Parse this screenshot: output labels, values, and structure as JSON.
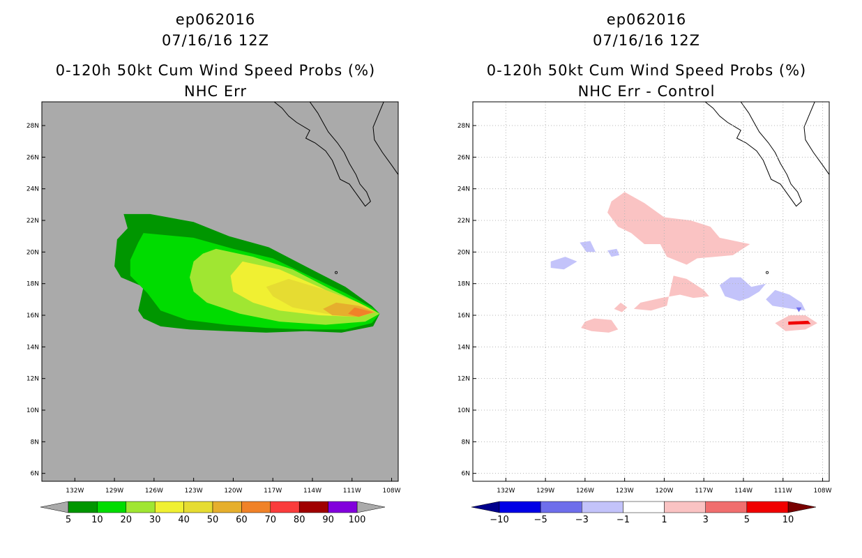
{
  "chart_data": [
    {
      "type": "heatmap",
      "storm_id": "ep062016",
      "datetime": "07/16/16 12Z",
      "title": "0-120h 50kt Cum Wind Speed Probs (%)",
      "subtitle": "NHC Err",
      "x_ticks": [
        "132W",
        "129W",
        "126W",
        "123W",
        "120W",
        "117W",
        "114W",
        "111W",
        "108W"
      ],
      "y_ticks": [
        "6N",
        "8N",
        "10N",
        "12N",
        "14N",
        "16N",
        "18N",
        "20N",
        "22N",
        "24N",
        "26N",
        "28N"
      ],
      "xlim": [
        -134.5,
        -107.5
      ],
      "ylim": [
        5.5,
        29.5
      ],
      "grid": false,
      "background_color": "#aaaaaa",
      "colorbar": {
        "labels": [
          "5",
          "10",
          "20",
          "30",
          "40",
          "50",
          "60",
          "70",
          "80",
          "90",
          "100"
        ],
        "colors": [
          "#009600",
          "#00dc00",
          "#a0e632",
          "#f0f032",
          "#e6dc32",
          "#e6af2d",
          "#f08228",
          "#fa3c3c",
          "#a00000",
          "#8200dc"
        ],
        "under_color": "#aaaaaa",
        "over_color": "#aaaaaa"
      },
      "contours": [
        {
          "level": 5,
          "color": "#009600",
          "polygon": [
            [
              -128.3,
              22.4
            ],
            [
              -126.3,
              22.4
            ],
            [
              -123.0,
              21.9
            ],
            [
              -120.3,
              21.0
            ],
            [
              -117.3,
              20.3
            ],
            [
              -114.3,
              19.0
            ],
            [
              -111.5,
              17.8
            ],
            [
              -109.5,
              16.6
            ],
            [
              -108.9,
              16.1
            ],
            [
              -109.4,
              15.3
            ],
            [
              -111.8,
              14.9
            ],
            [
              -114.5,
              15.0
            ],
            [
              -117.5,
              14.9
            ],
            [
              -120.5,
              15.0
            ],
            [
              -123.3,
              15.1
            ],
            [
              -125.5,
              15.3
            ],
            [
              -126.8,
              15.8
            ],
            [
              -127.2,
              16.3
            ],
            [
              -126.8,
              17.8
            ],
            [
              -128.5,
              18.4
            ],
            [
              -129.0,
              19.1
            ],
            [
              -128.8,
              20.8
            ],
            [
              -128.0,
              21.5
            ]
          ]
        },
        {
          "level": 10,
          "color": "#00dc00",
          "polygon": [
            [
              -126.8,
              21.2
            ],
            [
              -123.0,
              20.9
            ],
            [
              -120.0,
              20.2
            ],
            [
              -117.0,
              19.6
            ],
            [
              -114.0,
              18.4
            ],
            [
              -111.5,
              17.4
            ],
            [
              -109.5,
              16.5
            ],
            [
              -108.9,
              16.1
            ],
            [
              -109.5,
              15.5
            ],
            [
              -111.5,
              15.1
            ],
            [
              -114.5,
              15.1
            ],
            [
              -117.5,
              15.2
            ],
            [
              -120.5,
              15.4
            ],
            [
              -123.5,
              15.7
            ],
            [
              -125.5,
              16.3
            ],
            [
              -126.5,
              17.4
            ],
            [
              -127.8,
              18.5
            ],
            [
              -127.8,
              19.5
            ],
            [
              -127.2,
              20.6
            ]
          ]
        },
        {
          "level": 20,
          "color": "#a0e632",
          "polygon": [
            [
              -121.3,
              20.2
            ],
            [
              -118.5,
              19.7
            ],
            [
              -115.5,
              18.9
            ],
            [
              -112.5,
              17.6
            ],
            [
              -110.0,
              16.6
            ],
            [
              -108.9,
              16.1
            ],
            [
              -110.0,
              15.6
            ],
            [
              -113.0,
              15.4
            ],
            [
              -116.5,
              15.6
            ],
            [
              -119.5,
              16.1
            ],
            [
              -122.0,
              16.8
            ],
            [
              -123.0,
              17.5
            ],
            [
              -123.3,
              18.4
            ],
            [
              -123.0,
              19.4
            ],
            [
              -122.3,
              19.9
            ]
          ]
        },
        {
          "level": 30,
          "color": "#f0f032",
          "polygon": [
            [
              -119.3,
              19.4
            ],
            [
              -116.5,
              18.9
            ],
            [
              -113.5,
              17.8
            ],
            [
              -111.0,
              16.8
            ],
            [
              -109.2,
              16.2
            ],
            [
              -110.5,
              15.9
            ],
            [
              -113.5,
              16.0
            ],
            [
              -116.5,
              16.3
            ],
            [
              -118.5,
              16.8
            ],
            [
              -120.0,
              17.5
            ],
            [
              -120.2,
              18.5
            ]
          ]
        },
        {
          "level": 40,
          "color": "#e6dc32",
          "polygon": [
            [
              -115.8,
              18.3
            ],
            [
              -113.0,
              17.6
            ],
            [
              -110.5,
              16.8
            ],
            [
              -109.2,
              16.2
            ],
            [
              -110.5,
              15.9
            ],
            [
              -113.0,
              16.1
            ],
            [
              -115.5,
              16.5
            ],
            [
              -117.0,
              17.2
            ],
            [
              -117.5,
              17.8
            ]
          ]
        },
        {
          "level": 50,
          "color": "#e6af2d",
          "polygon": [
            [
              -112.2,
              16.8
            ],
            [
              -110.5,
              16.6
            ],
            [
              -109.2,
              16.2
            ],
            [
              -110.5,
              15.9
            ],
            [
              -112.5,
              16.0
            ],
            [
              -113.2,
              16.4
            ]
          ]
        },
        {
          "level": 60,
          "color": "#f08228",
          "polygon": [
            [
              -110.8,
              16.5
            ],
            [
              -109.4,
              16.2
            ],
            [
              -110.5,
              15.9
            ],
            [
              -111.3,
              16.1
            ]
          ]
        }
      ]
    },
    {
      "type": "heatmap",
      "storm_id": "ep062016",
      "datetime": "07/16/16 12Z",
      "title": "0-120h 50kt Cum Wind Speed Probs (%)",
      "subtitle": "NHC Err - Control",
      "x_ticks": [
        "132W",
        "129W",
        "126W",
        "123W",
        "120W",
        "117W",
        "114W",
        "111W",
        "108W"
      ],
      "y_ticks": [
        "6N",
        "8N",
        "10N",
        "12N",
        "14N",
        "16N",
        "18N",
        "20N",
        "22N",
        "24N",
        "26N",
        "28N"
      ],
      "xlim": [
        -134.5,
        -107.5
      ],
      "ylim": [
        5.5,
        29.5
      ],
      "grid": true,
      "background_color": "#ffffff",
      "colorbar": {
        "labels": [
          "-10",
          "-5",
          "-3",
          "-1",
          "1",
          "3",
          "5",
          "10"
        ],
        "colors": [
          "#0000e6",
          "#6e6eeb",
          "#c3c3fa",
          "#ffffff",
          "#fac3c3",
          "#f06e6e",
          "#f00000"
        ],
        "under_color": "#00008c",
        "over_color": "#780000"
      },
      "contours": [
        {
          "level": 1,
          "color": "#fac3c3",
          "polygon": [
            [
              -123.0,
              23.8
            ],
            [
              -121.5,
              23.1
            ],
            [
              -120.0,
              22.2
            ],
            [
              -118.0,
              22.0
            ],
            [
              -116.5,
              21.6
            ],
            [
              -115.8,
              20.9
            ],
            [
              -113.5,
              20.5
            ],
            [
              -114.8,
              19.8
            ],
            [
              -117.5,
              19.6
            ],
            [
              -118.3,
              19.2
            ],
            [
              -119.8,
              19.7
            ],
            [
              -120.3,
              20.5
            ],
            [
              -121.5,
              20.5
            ],
            [
              -122.5,
              21.2
            ],
            [
              -123.5,
              21.6
            ],
            [
              -124.3,
              22.5
            ],
            [
              -124.0,
              23.2
            ]
          ]
        },
        {
          "level": 1,
          "color": "#fac3c3",
          "polygon": [
            [
              -119.3,
              18.5
            ],
            [
              -118.3,
              18.3
            ],
            [
              -117.0,
              17.6
            ],
            [
              -116.6,
              17.2
            ],
            [
              -117.8,
              17.1
            ],
            [
              -118.8,
              17.3
            ],
            [
              -120.2,
              17.1
            ],
            [
              -121.8,
              16.8
            ],
            [
              -122.3,
              16.4
            ],
            [
              -121.0,
              16.3
            ],
            [
              -119.8,
              16.6
            ]
          ]
        },
        {
          "level": 1,
          "color": "#fac3c3",
          "polygon": [
            [
              -125.3,
              15.8
            ],
            [
              -124.0,
              15.7
            ],
            [
              -123.5,
              15.1
            ],
            [
              -124.2,
              14.9
            ],
            [
              -125.5,
              15.0
            ],
            [
              -126.3,
              15.2
            ],
            [
              -126.0,
              15.6
            ]
          ]
        },
        {
          "level": 1,
          "color": "#fac3c3",
          "polygon": [
            [
              -123.3,
              16.8
            ],
            [
              -122.8,
              16.5
            ],
            [
              -123.2,
              16.2
            ],
            [
              -123.8,
              16.4
            ]
          ]
        },
        {
          "level": 1,
          "color": "#fac3c3",
          "polygon": [
            [
              -111.6,
              15.5
            ],
            [
              -110.5,
              16.0
            ],
            [
              -109.3,
              16.0
            ],
            [
              -108.4,
              15.5
            ],
            [
              -109.3,
              15.1
            ],
            [
              -110.8,
              15.0
            ]
          ]
        },
        {
          "level": 5,
          "color": "#f00000",
          "polygon": [
            [
              -110.6,
              15.6
            ],
            [
              -109.1,
              15.65
            ],
            [
              -108.9,
              15.45
            ],
            [
              -110.6,
              15.4
            ]
          ]
        },
        {
          "level": -1,
          "color": "#c3c3fa",
          "polygon": [
            [
              -115.0,
              18.4
            ],
            [
              -114.2,
              18.4
            ],
            [
              -113.4,
              17.8
            ],
            [
              -112.3,
              18.0
            ],
            [
              -112.8,
              17.5
            ],
            [
              -113.6,
              17.1
            ],
            [
              -114.3,
              16.9
            ],
            [
              -115.4,
              17.2
            ],
            [
              -115.8,
              17.9
            ]
          ]
        },
        {
          "level": -1,
          "color": "#c3c3fa",
          "polygon": [
            [
              -111.6,
              17.6
            ],
            [
              -110.5,
              17.3
            ],
            [
              -109.6,
              16.8
            ],
            [
              -109.3,
              16.3
            ],
            [
              -110.3,
              16.4
            ],
            [
              -111.8,
              16.6
            ],
            [
              -112.3,
              17.0
            ]
          ]
        },
        {
          "level": -1,
          "color": "#c3c3fa",
          "polygon": [
            [
              -128.6,
              19.4
            ],
            [
              -127.5,
              19.7
            ],
            [
              -126.6,
              19.4
            ],
            [
              -127.6,
              18.9
            ],
            [
              -128.6,
              19.0
            ]
          ]
        },
        {
          "level": -1,
          "color": "#c3c3fa",
          "polygon": [
            [
              -126.4,
              20.6
            ],
            [
              -125.6,
              20.7
            ],
            [
              -125.2,
              20.0
            ],
            [
              -125.9,
              20.0
            ]
          ]
        },
        {
          "level": -1,
          "color": "#c3c3fa",
          "polygon": [
            [
              -124.3,
              20.1
            ],
            [
              -123.6,
              20.2
            ],
            [
              -123.4,
              19.8
            ],
            [
              -124.0,
              19.7
            ]
          ]
        },
        {
          "level": -5,
          "color": "#6e6eeb",
          "polygon": [
            [
              -110.0,
              16.5
            ],
            [
              -109.6,
              16.5
            ],
            [
              -109.8,
              16.2
            ]
          ]
        }
      ]
    }
  ]
}
